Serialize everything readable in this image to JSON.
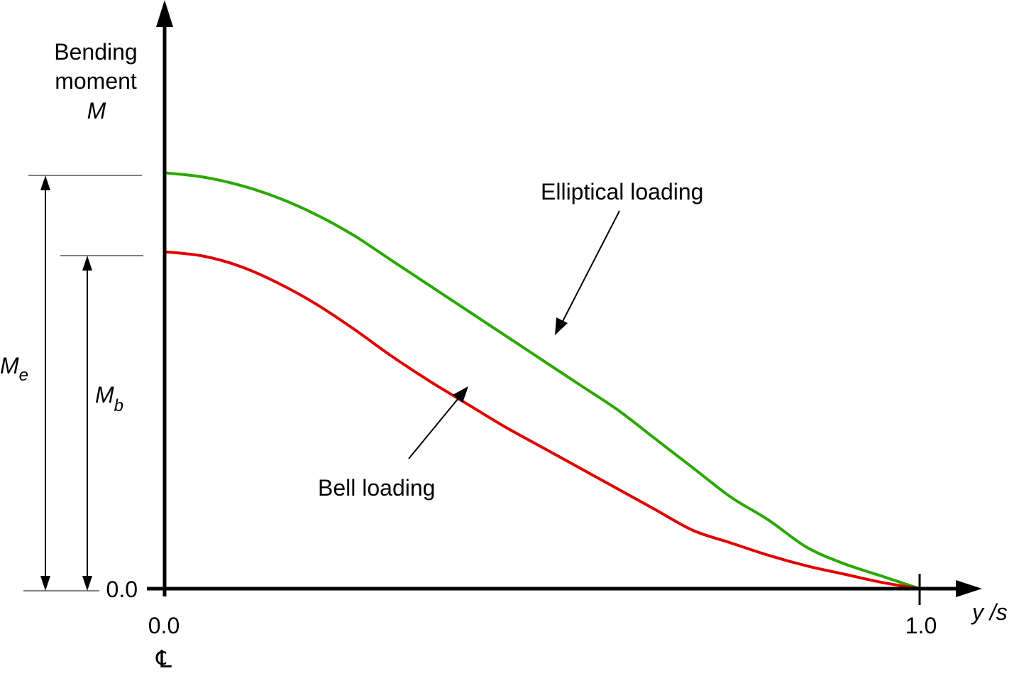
{
  "chart_data": {
    "type": "line",
    "y_axis_label_lines": [
      "Bending",
      "moment",
      "M"
    ],
    "x_axis_label": "y /s",
    "x_ticks": [
      "0.0",
      "1.0"
    ],
    "y_ticks": [
      "0.0"
    ],
    "centerline_symbol": "℄",
    "xlim": [
      0,
      1
    ],
    "ylim": [
      0,
      1.33
    ],
    "grid": false,
    "series": [
      {
        "name": "Elliptical loading",
        "color": "#2ca800",
        "x": [
          0.0,
          0.05,
          0.1,
          0.15,
          0.2,
          0.25,
          0.3,
          0.35,
          0.4,
          0.45,
          0.5,
          0.55,
          0.6,
          0.65,
          0.7,
          0.75,
          0.8,
          0.85,
          0.9,
          0.95,
          1.0
        ],
        "y": [
          1.0,
          0.99,
          0.97,
          0.94,
          0.9,
          0.85,
          0.79,
          0.73,
          0.67,
          0.61,
          0.55,
          0.49,
          0.43,
          0.36,
          0.29,
          0.22,
          0.165,
          0.1,
          0.06,
          0.03,
          0.0
        ]
      },
      {
        "name": "Bell loading",
        "color": "#e00000",
        "x": [
          0.0,
          0.05,
          0.1,
          0.15,
          0.2,
          0.25,
          0.3,
          0.35,
          0.4,
          0.45,
          0.5,
          0.55,
          0.6,
          0.65,
          0.7,
          0.75,
          0.8,
          0.85,
          0.9,
          0.95,
          1.0
        ],
        "y": [
          0.81,
          0.8,
          0.775,
          0.735,
          0.685,
          0.625,
          0.56,
          0.5,
          0.445,
          0.39,
          0.34,
          0.29,
          0.24,
          0.19,
          0.14,
          0.11,
          0.08,
          0.055,
          0.035,
          0.015,
          0.0
        ]
      }
    ],
    "annotations": {
      "elliptical_label": "Elliptical loading",
      "bell_label": "Bell loading",
      "me_symbol": "M",
      "me_subscript": "e",
      "mb_symbol": "M",
      "mb_subscript": "b"
    }
  }
}
